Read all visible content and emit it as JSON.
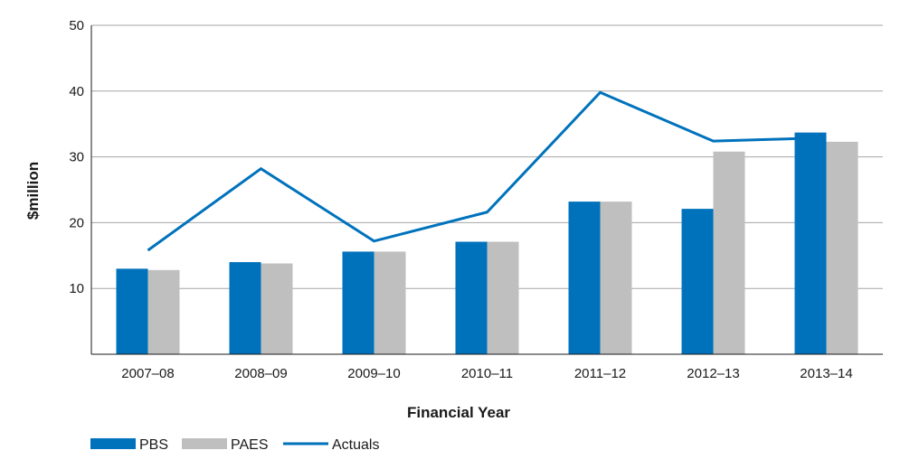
{
  "chart_data": {
    "type": "bar",
    "categories": [
      "2007–08",
      "2008–09",
      "2009–10",
      "2010–11",
      "2011–12",
      "2012–13",
      "2013–14"
    ],
    "series": [
      {
        "name": "PBS",
        "type": "bar",
        "color": "#0072BC",
        "values": [
          13.0,
          14.0,
          15.6,
          17.1,
          23.2,
          22.1,
          33.7
        ]
      },
      {
        "name": "PAES",
        "type": "bar",
        "color": "#BFBFBF",
        "values": [
          12.8,
          13.8,
          15.6,
          17.1,
          23.2,
          30.8,
          32.3
        ]
      },
      {
        "name": "Actuals",
        "type": "line",
        "color": "#0072BC",
        "values": [
          15.8,
          28.2,
          17.2,
          21.6,
          39.8,
          32.4,
          32.9
        ]
      }
    ],
    "xlabel": "Financial Year",
    "ylabel": "$million",
    "ylim": [
      0,
      50
    ],
    "yticks": [
      10,
      20,
      30,
      40,
      50
    ],
    "grid": true,
    "legend": "bottom-left"
  }
}
